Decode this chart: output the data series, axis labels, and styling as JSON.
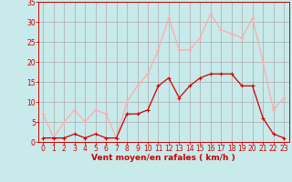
{
  "hours": [
    0,
    1,
    2,
    3,
    4,
    5,
    6,
    7,
    8,
    9,
    10,
    11,
    12,
    13,
    14,
    15,
    16,
    17,
    18,
    19,
    20,
    21,
    22,
    23
  ],
  "wind_avg": [
    1,
    1,
    1,
    2,
    1,
    2,
    1,
    1,
    7,
    7,
    8,
    14,
    16,
    11,
    14,
    16,
    17,
    17,
    17,
    14,
    14,
    6,
    2,
    1
  ],
  "wind_gust": [
    7,
    1,
    5,
    8,
    5,
    8,
    7,
    1,
    10,
    14,
    17,
    23,
    31,
    23,
    23,
    26,
    32,
    28,
    27,
    26,
    31,
    20,
    8,
    11
  ],
  "avg_color": "#cc0000",
  "gust_color": "#ffaaaa",
  "background_color": "#c8eaea",
  "grid_color": "#aaaaaa",
  "xlabel": "Vent moyen/en rafales ( km/h )",
  "ylim": [
    0,
    35
  ],
  "xlim": [
    -0.5,
    23.5
  ],
  "yticks": [
    0,
    5,
    10,
    15,
    20,
    25,
    30,
    35
  ],
  "xticks": [
    0,
    1,
    2,
    3,
    4,
    5,
    6,
    7,
    8,
    9,
    10,
    11,
    12,
    13,
    14,
    15,
    16,
    17,
    18,
    19,
    20,
    21,
    22,
    23
  ],
  "tick_color": "#cc0000",
  "label_color": "#cc0000",
  "tick_fontsize": 5.5,
  "xlabel_fontsize": 6.5
}
